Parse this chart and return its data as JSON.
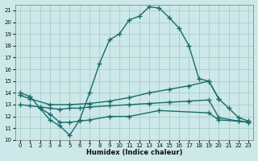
{
  "xlabel": "Humidex (Indice chaleur)",
  "bg_color": "#cce8e8",
  "grid_color": "#aacccc",
  "line_color": "#1a6b6b",
  "xlim": [
    -0.5,
    23.5
  ],
  "ylim": [
    10,
    21.5
  ],
  "yticks": [
    10,
    11,
    12,
    13,
    14,
    15,
    16,
    17,
    18,
    19,
    20,
    21
  ],
  "xticks": [
    0,
    1,
    2,
    3,
    4,
    5,
    6,
    7,
    8,
    9,
    10,
    11,
    12,
    13,
    14,
    15,
    16,
    17,
    18,
    19,
    20,
    21,
    22,
    23
  ],
  "curve1_x": [
    0,
    1,
    2,
    3,
    4,
    5,
    6,
    7,
    8,
    9,
    10,
    11,
    12,
    13,
    14,
    15,
    16,
    17,
    18,
    19,
    20,
    21,
    22,
    23
  ],
  "curve1_y": [
    14.0,
    13.7,
    12.7,
    11.7,
    11.2,
    10.4,
    11.7,
    14.0,
    16.5,
    18.5,
    19.0,
    20.2,
    20.5,
    21.3,
    21.2,
    20.4,
    19.5,
    18.0,
    15.2,
    15.0,
    13.5,
    12.7,
    11.9,
    11.6
  ],
  "curve2_x": [
    0,
    1,
    3,
    5,
    7,
    9,
    11,
    13,
    15,
    17,
    19,
    20
  ],
  "curve2_y": [
    13.8,
    13.5,
    13.0,
    13.0,
    13.1,
    13.3,
    13.6,
    14.0,
    14.3,
    14.6,
    15.0,
    13.5
  ],
  "curve3_x": [
    0,
    1,
    2,
    3,
    4,
    5,
    6,
    7,
    9,
    11,
    13,
    15,
    17,
    19,
    20,
    22,
    23
  ],
  "curve3_y": [
    13.0,
    12.9,
    12.8,
    12.7,
    12.6,
    12.7,
    12.7,
    12.8,
    12.9,
    13.0,
    13.1,
    13.2,
    13.3,
    13.4,
    11.9,
    11.6,
    11.5
  ],
  "curve4_x": [
    2,
    3,
    4,
    5,
    6,
    7,
    9,
    11,
    14,
    19,
    20,
    22,
    23
  ],
  "curve4_y": [
    12.7,
    12.2,
    11.5,
    11.5,
    11.6,
    11.7,
    12.0,
    12.0,
    12.5,
    12.3,
    11.7,
    11.6,
    11.5
  ]
}
